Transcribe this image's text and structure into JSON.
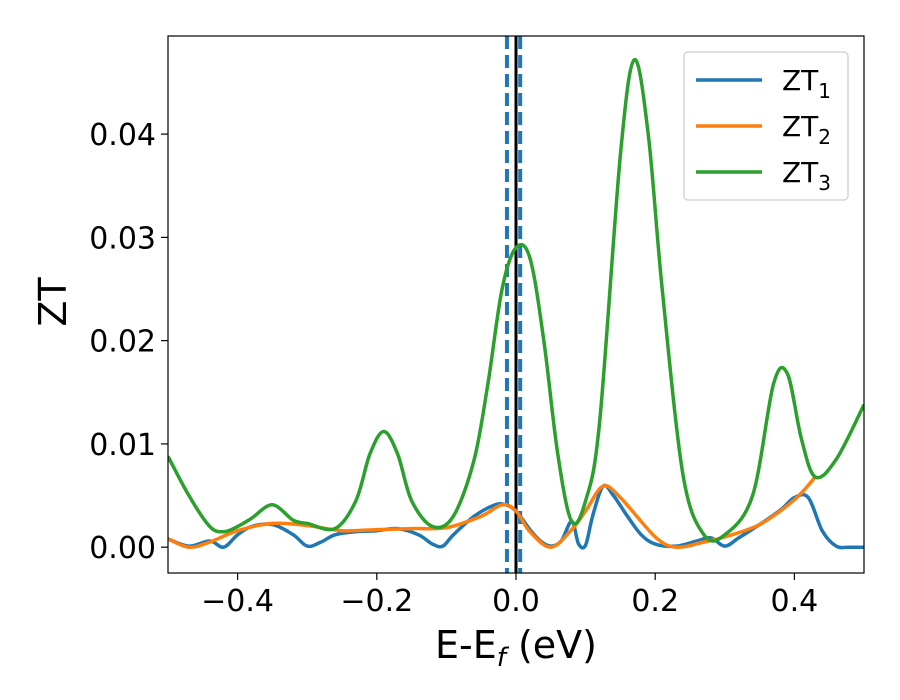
{
  "chart_data": {
    "type": "line",
    "xlabel_main": "E-E",
    "xlabel_sub": "f",
    "xlabel_unit": " (eV)",
    "ylabel": "ZT",
    "xlim": [
      -0.5,
      0.5
    ],
    "ylim": [
      -0.0025,
      0.0495
    ],
    "xticks": [
      -0.4,
      -0.2,
      0.0,
      0.2,
      0.4
    ],
    "xtick_labels": [
      "−0.4",
      "−0.2",
      "0.0",
      "0.2",
      "0.4"
    ],
    "yticks": [
      0.0,
      0.01,
      0.02,
      0.03,
      0.04
    ],
    "ytick_labels": [
      "0.00",
      "0.01",
      "0.02",
      "0.03",
      "0.04"
    ],
    "legend_position": "top-right",
    "vertical_lines": [
      {
        "x": -0.013,
        "style": "dashed",
        "color": "#1f77b4"
      },
      {
        "x": 0.006,
        "style": "dashed",
        "color": "#1f77b4"
      },
      {
        "x": 0.0,
        "style": "solid",
        "color": "#000000"
      }
    ],
    "series": [
      {
        "name": "ZT",
        "sub": "1",
        "color": "#1f77b4",
        "x": [
          -0.5,
          -0.47,
          -0.44,
          -0.42,
          -0.4,
          -0.38,
          -0.35,
          -0.32,
          -0.3,
          -0.28,
          -0.26,
          -0.23,
          -0.2,
          -0.17,
          -0.14,
          -0.12,
          -0.105,
          -0.09,
          -0.06,
          -0.03,
          -0.015,
          0.0,
          0.02,
          0.035,
          0.05,
          0.065,
          0.08,
          0.09,
          0.1,
          0.11,
          0.125,
          0.14,
          0.16,
          0.18,
          0.2,
          0.23,
          0.26,
          0.28,
          0.3,
          0.32,
          0.35,
          0.38,
          0.4,
          0.42,
          0.44,
          0.46,
          0.48,
          0.5
        ],
        "y": [
          0.0008,
          0.0001,
          0.0006,
          0.0,
          0.0012,
          0.002,
          0.0022,
          0.0012,
          0.0001,
          0.0005,
          0.0012,
          0.0015,
          0.0016,
          0.0018,
          0.0012,
          0.0003,
          0.0001,
          0.0012,
          0.003,
          0.0041,
          0.0041,
          0.0035,
          0.0017,
          0.0006,
          0.0001,
          0.0006,
          0.0025,
          0.0003,
          0.0002,
          0.003,
          0.0059,
          0.005,
          0.003,
          0.0012,
          0.0003,
          0.0001,
          0.0006,
          0.0009,
          0.0001,
          0.0009,
          0.0022,
          0.0036,
          0.0048,
          0.0048,
          0.0016,
          0.0001,
          0.0,
          0.0
        ]
      },
      {
        "name": "ZT",
        "sub": "2",
        "color": "#ff7f0e",
        "x": [
          -0.5,
          -0.47,
          -0.44,
          -0.4,
          -0.35,
          -0.3,
          -0.25,
          -0.2,
          -0.15,
          -0.1,
          -0.05,
          -0.02,
          0.0,
          0.02,
          0.05,
          0.08,
          0.1,
          0.125,
          0.15,
          0.2,
          0.23,
          0.27,
          0.3,
          0.35,
          0.4,
          0.43
        ],
        "y": [
          0.0008,
          0.0,
          0.0005,
          0.0016,
          0.0023,
          0.0021,
          0.0016,
          0.0017,
          0.0018,
          0.0019,
          0.003,
          0.0041,
          0.0035,
          0.0015,
          0.0,
          0.0017,
          0.0035,
          0.0059,
          0.0048,
          0.001,
          0.0,
          0.0005,
          0.001,
          0.0022,
          0.0046,
          0.0068
        ]
      },
      {
        "name": "ZT",
        "sub": "3",
        "color": "#2ca02c",
        "x": [
          -0.5,
          -0.47,
          -0.44,
          -0.42,
          -0.4,
          -0.38,
          -0.35,
          -0.32,
          -0.3,
          -0.26,
          -0.23,
          -0.21,
          -0.19,
          -0.17,
          -0.15,
          -0.12,
          -0.09,
          -0.06,
          -0.04,
          -0.02,
          0.0,
          0.02,
          0.04,
          0.06,
          0.08,
          0.1,
          0.12,
          0.15,
          0.17,
          0.19,
          0.21,
          0.24,
          0.27,
          0.3,
          0.34,
          0.37,
          0.39,
          0.41,
          0.43,
          0.46,
          0.5
        ],
        "y": [
          0.0088,
          0.005,
          0.002,
          0.0015,
          0.002,
          0.0028,
          0.0041,
          0.0026,
          0.0023,
          0.0018,
          0.0045,
          0.009,
          0.0112,
          0.009,
          0.0045,
          0.002,
          0.003,
          0.0085,
          0.016,
          0.025,
          0.029,
          0.028,
          0.02,
          0.009,
          0.0025,
          0.0045,
          0.012,
          0.038,
          0.0472,
          0.04,
          0.025,
          0.007,
          0.0012,
          0.0012,
          0.005,
          0.0158,
          0.0168,
          0.0105,
          0.0068,
          0.0085,
          0.0138
        ]
      }
    ]
  }
}
